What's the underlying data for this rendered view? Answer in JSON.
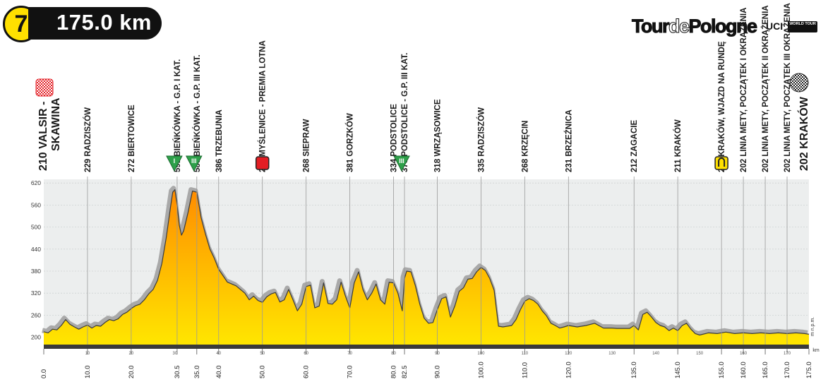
{
  "stage": {
    "number": "7",
    "distance": "175.0 km"
  },
  "logo": {
    "brand_left": "Tour",
    "brand_mid": "de",
    "brand_right": "Pologne",
    "uci": "UCI",
    "world_tour": "WORLD TOUR"
  },
  "chart_data": {
    "type": "area",
    "xlim": [
      0,
      175
    ],
    "ylim": [
      180,
      630
    ],
    "y_unit": "m n.p.m.",
    "x_unit": "km",
    "y_ticks": [
      200,
      260,
      320,
      380,
      440,
      500,
      560,
      620
    ],
    "x_ticks": [
      "0.0",
      "10.0",
      "20.0",
      "30.5",
      "35.0",
      "40.0",
      "50.0",
      "60.0",
      "70.0",
      "80.0",
      "82.5",
      "90.0",
      "100.0",
      "110.0",
      "120.0",
      "135.0",
      "145.0",
      "155.0",
      "160.0",
      "165.0",
      "170.0",
      "175.0"
    ],
    "km_strip_ticks": [
      "10",
      "20",
      "30",
      "40",
      "50",
      "60",
      "70",
      "80",
      "90",
      "100",
      "110",
      "120",
      "130",
      "140",
      "150",
      "160",
      "170"
    ],
    "profile": {
      "x": [
        0,
        1,
        2,
        3,
        4,
        5,
        6,
        7,
        8,
        9,
        10,
        11,
        12,
        13,
        14,
        15,
        16,
        17,
        18,
        19,
        20,
        21,
        22,
        23,
        24,
        25,
        26,
        27,
        28,
        29,
        29.5,
        30,
        30.5,
        31,
        31.5,
        32,
        32.5,
        33,
        34,
        35,
        35.5,
        36,
        37,
        38,
        39,
        40,
        42,
        44,
        46,
        47,
        48,
        49,
        50,
        51,
        52,
        53,
        54,
        55,
        56,
        57,
        58,
        59,
        60,
        61,
        62,
        63,
        64,
        65,
        66,
        67,
        68,
        69,
        70,
        71,
        72,
        73,
        74,
        75,
        76,
        77,
        78,
        79,
        80,
        81,
        82,
        82.5,
        83,
        84,
        85,
        86,
        87,
        88,
        89,
        90,
        91,
        92,
        93,
        94,
        95,
        96,
        97,
        98,
        99,
        100,
        101,
        102,
        103,
        104,
        105,
        106,
        107,
        108,
        109,
        110,
        111,
        112,
        113,
        114,
        115,
        116,
        117,
        118,
        119,
        120,
        121,
        122,
        124,
        126,
        128,
        130,
        131,
        132,
        133,
        134,
        135,
        136,
        137,
        138,
        139,
        140,
        141,
        142,
        143,
        144,
        145,
        146,
        147,
        148,
        149,
        150,
        152,
        154,
        156,
        158,
        160,
        162,
        164,
        166,
        168,
        170,
        172,
        174,
        175
      ],
      "y": [
        215,
        212,
        222,
        220,
        232,
        248,
        235,
        228,
        222,
        228,
        233,
        225,
        232,
        230,
        240,
        248,
        245,
        250,
        262,
        268,
        278,
        286,
        290,
        302,
        318,
        330,
        355,
        400,
        470,
        555,
        595,
        602,
        560,
        505,
        478,
        490,
        515,
        540,
        598,
        595,
        560,
        525,
        480,
        440,
        415,
        385,
        350,
        340,
        320,
        302,
        312,
        300,
        295,
        310,
        318,
        322,
        296,
        302,
        330,
        302,
        272,
        290,
        338,
        342,
        280,
        285,
        348,
        292,
        290,
        302,
        350,
        312,
        280,
        348,
        378,
        330,
        302,
        320,
        345,
        302,
        290,
        350,
        348,
        320,
        272,
        360,
        380,
        378,
        340,
        290,
        252,
        238,
        240,
        275,
        305,
        310,
        255,
        285,
        325,
        335,
        358,
        360,
        378,
        390,
        382,
        360,
        328,
        230,
        228,
        230,
        232,
        248,
        275,
        298,
        305,
        300,
        290,
        272,
        258,
        238,
        232,
        225,
        228,
        232,
        230,
        228,
        232,
        238,
        225,
        225,
        224,
        224,
        224,
        224,
        232,
        220,
        262,
        268,
        255,
        240,
        232,
        228,
        218,
        225,
        218,
        232,
        238,
        222,
        210,
        206,
        212,
        210,
        214,
        210,
        212,
        210,
        212,
        210,
        212,
        210,
        212,
        210,
        208
      ],
      "fill_top": "#ff8c00",
      "fill_bottom": "#ffe600",
      "shadow": "#a9a9a9"
    },
    "markers": [
      {
        "km": 0,
        "label": "210 VALSIR -",
        "label2": "SKAWINA",
        "icon": "start-flag",
        "big": true
      },
      {
        "km": 10,
        "label": "229 RADZISZÓW"
      },
      {
        "km": 20,
        "label": "272 BIERTOWICE"
      },
      {
        "km": 30.5,
        "label": "591 BIEŃKÓWKA - G.P. I KAT.",
        "icon": "kom",
        "icon_text": "I"
      },
      {
        "km": 35,
        "label": "580 BIEŃKÓWKA - G.P. III KAT.",
        "icon": "kom",
        "icon_text": "III"
      },
      {
        "km": 40,
        "label": "386 TRZEBUNIA"
      },
      {
        "km": 50,
        "label": "293 MYŚLENICE - PREMIA LOTNA",
        "icon": "sprint"
      },
      {
        "km": 60,
        "label": "268 SIEPRAW"
      },
      {
        "km": 70,
        "label": "381 GORZKÓW"
      },
      {
        "km": 80,
        "label": "334 PODSTOLICE"
      },
      {
        "km": 82.5,
        "label": "378 PODSTOLICE - G.P. III KAT.",
        "icon": "kom",
        "icon_text": "III"
      },
      {
        "km": 90,
        "label": "318 WRZĄSOWICE"
      },
      {
        "km": 100,
        "label": "335 RADZISZÓW"
      },
      {
        "km": 110,
        "label": "268 KRZĘCIN"
      },
      {
        "km": 120,
        "label": "231 BRZEŹNICA"
      },
      {
        "km": 135,
        "label": "212 ZAGACIE"
      },
      {
        "km": 145,
        "label": "211 KRAKÓW"
      },
      {
        "km": 155,
        "label": "204 KRAKÓW, WJAZD NA RUNDĘ",
        "icon": "circuit"
      },
      {
        "km": 160,
        "label": "202 LINIA METY, POCZĄTEK I OKRĄŻENIA"
      },
      {
        "km": 165,
        "label": "202 LINIA METY, POCZĄTEK II OKRĄŻENIA"
      },
      {
        "km": 170,
        "label": "202 LINIA METY, POCZĄTEK III OKRĄŻENIA"
      },
      {
        "km": 175,
        "label": "202 KRAKÓW",
        "icon": "finish-flag",
        "big": true
      }
    ]
  }
}
